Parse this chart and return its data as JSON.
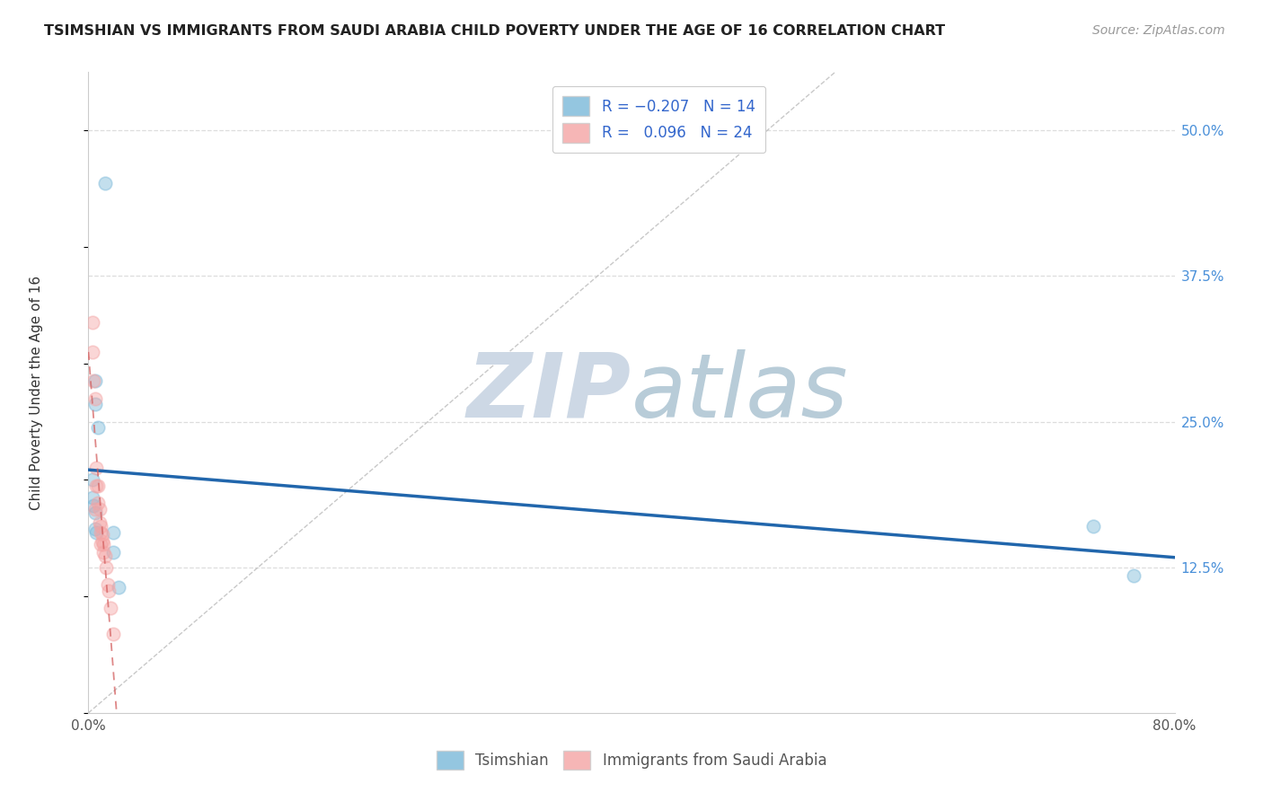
{
  "title": "TSIMSHIAN VS IMMIGRANTS FROM SAUDI ARABIA CHILD POVERTY UNDER THE AGE OF 16 CORRELATION CHART",
  "source": "Source: ZipAtlas.com",
  "ylabel": "Child Poverty Under the Age of 16",
  "xlim": [
    0.0,
    0.8
  ],
  "ylim": [
    0.0,
    0.55
  ],
  "yticks_right": [
    0.125,
    0.25,
    0.375,
    0.5
  ],
  "ytick_labels_right": [
    "12.5%",
    "25.0%",
    "37.5%",
    "50.0%"
  ],
  "xtick_vals": [
    0.0,
    0.1,
    0.2,
    0.3,
    0.4,
    0.5,
    0.6,
    0.7,
    0.8
  ],
  "xtick_labels": [
    "0.0%",
    "",
    "",
    "",
    "",
    "",
    "",
    "",
    "80.0%"
  ],
  "tsimshian_color": "#7ab8d9",
  "saudi_color": "#f4a4a4",
  "trend_blue": "#2166ac",
  "trend_pink": "#d46060",
  "ref_line_color": "#bbbbbb",
  "background_color": "#ffffff",
  "grid_color": "#dddddd",
  "tsimshian_points_x": [
    0.012,
    0.005,
    0.005,
    0.007,
    0.003,
    0.003,
    0.004,
    0.005,
    0.005,
    0.006,
    0.018,
    0.018,
    0.022,
    0.74,
    0.77
  ],
  "tsimshian_points_y": [
    0.455,
    0.285,
    0.265,
    0.245,
    0.2,
    0.185,
    0.178,
    0.172,
    0.158,
    0.155,
    0.155,
    0.138,
    0.108,
    0.16,
    0.118
  ],
  "saudi_points_x": [
    0.003,
    0.003,
    0.004,
    0.005,
    0.005,
    0.006,
    0.006,
    0.007,
    0.007,
    0.008,
    0.008,
    0.009,
    0.009,
    0.009,
    0.01,
    0.01,
    0.011,
    0.011,
    0.012,
    0.013,
    0.014,
    0.015,
    0.016,
    0.018
  ],
  "saudi_points_y": [
    0.335,
    0.31,
    0.285,
    0.27,
    0.175,
    0.21,
    0.195,
    0.195,
    0.18,
    0.175,
    0.163,
    0.16,
    0.155,
    0.145,
    0.153,
    0.147,
    0.145,
    0.138,
    0.135,
    0.125,
    0.11,
    0.105,
    0.09,
    0.068
  ],
  "marker_size": 110,
  "marker_alpha": 0.45,
  "watermark_zip": "ZIP",
  "watermark_atlas": "atlas",
  "watermark_color_zip": "#cdd8e5",
  "watermark_color_atlas": "#b8ccd8"
}
